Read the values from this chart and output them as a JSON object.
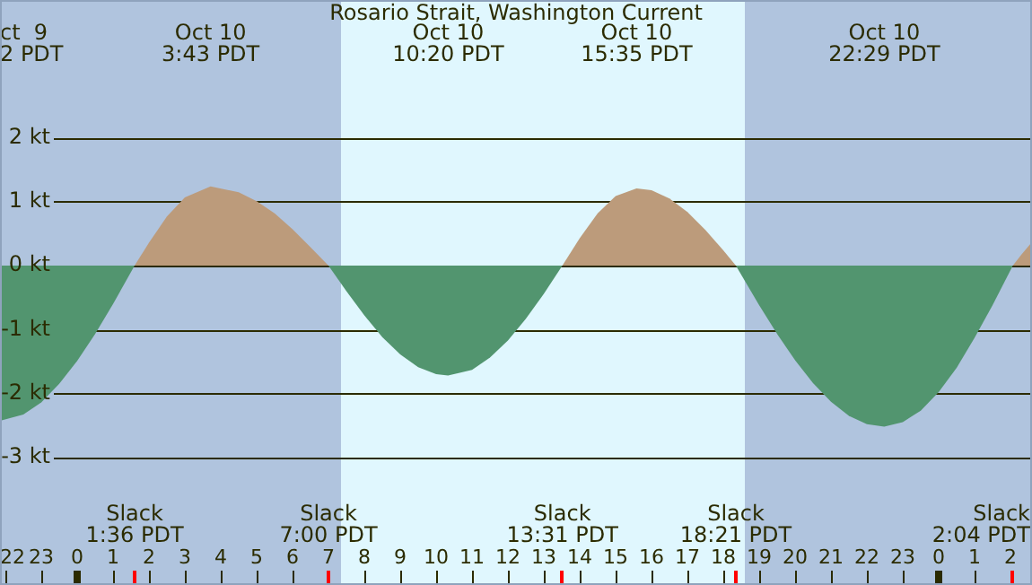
{
  "chart_data": {
    "type": "area",
    "title": "Rosario Strait, Washington Current",
    "x": [
      "--10-09T21:51",
      "--10-09T22:30",
      "--10-09T23:00",
      "--10-09T23:30",
      "--10-10T00:00",
      "--10-10T00:30",
      "--10-10T01:00",
      "--10-10T01:36",
      "--10-10T02:00",
      "--10-10T02:30",
      "--10-10T03:00",
      "--10-10T03:43",
      "--10-10T04:30",
      "--10-10T05:00",
      "--10-10T05:30",
      "--10-10T06:00",
      "--10-10T06:30",
      "--10-10T07:00",
      "--10-10T07:30",
      "--10-10T08:00",
      "--10-10T08:30",
      "--10-10T09:00",
      "--10-10T09:30",
      "--10-10T10:00",
      "--10-10T10:20",
      "--10-10T11:00",
      "--10-10T11:30",
      "--10-10T12:00",
      "--10-10T12:30",
      "--10-10T13:00",
      "--10-10T13:31",
      "--10-10T14:00",
      "--10-10T14:30",
      "--10-10T15:00",
      "--10-10T15:35",
      "--10-10T16:00",
      "--10-10T16:30",
      "--10-10T17:00",
      "--10-10T17:30",
      "--10-10T18:00",
      "--10-10T18:21",
      "--10-10T19:00",
      "--10-10T19:30",
      "--10-10T20:00",
      "--10-10T20:30",
      "--10-10T21:00",
      "--10-10T21:30",
      "--10-10T22:00",
      "--10-10T22:29",
      "--10-10T23:00",
      "--10-10T23:30",
      "--10-11T00:00",
      "--10-11T00:30",
      "--10-11T01:00",
      "--10-11T01:30",
      "--10-11T02:04",
      "--10-11T02:18",
      "--10-11T02:36"
    ],
    "series": [
      {
        "color": "#52956f",
        "values": [
          -2.43,
          -2.33,
          -2.14,
          -1.85,
          -1.49,
          -1.07,
          -0.6,
          0,
          null,
          null,
          null,
          null,
          null,
          null,
          null,
          null,
          null,
          0,
          -0.4,
          -0.78,
          -1.12,
          -1.39,
          -1.59,
          -1.7,
          -1.72,
          -1.63,
          -1.44,
          -1.17,
          -0.83,
          -0.44,
          0,
          null,
          null,
          null,
          null,
          null,
          null,
          null,
          null,
          null,
          0,
          -0.62,
          -1.07,
          -1.48,
          -1.84,
          -2.13,
          -2.35,
          -2.48,
          -2.52,
          -2.45,
          -2.27,
          -1.98,
          -1.6,
          -1.13,
          -0.62,
          0,
          null,
          null
        ]
      },
      {
        "color": "#bc9b7b",
        "values": [
          null,
          null,
          null,
          null,
          null,
          null,
          null,
          0,
          0.36,
          0.77,
          1.07,
          1.24,
          1.15,
          1.01,
          0.82,
          0.57,
          0.29,
          0,
          null,
          null,
          null,
          null,
          null,
          null,
          null,
          null,
          null,
          null,
          null,
          null,
          0,
          0.43,
          0.82,
          1.09,
          1.21,
          1.18,
          1.05,
          0.84,
          0.56,
          0.24,
          0,
          null,
          null,
          null,
          null,
          null,
          null,
          null,
          null,
          null,
          null,
          null,
          null,
          null,
          null,
          0,
          0.17,
          0.37
        ]
      }
    ],
    "xlim": [
      "--10-09T21:51",
      "--10-11T02:36"
    ],
    "xticks": [
      {
        "value": "--10-09T22:00",
        "label": "22"
      },
      {
        "value": "--10-09T23:00",
        "label": "23"
      },
      {
        "value": "--10-10T00:00",
        "label": "0"
      },
      {
        "value": "--10-10T01:00",
        "label": "1"
      },
      {
        "value": "--10-10T02:00",
        "label": "2"
      },
      {
        "value": "--10-10T03:00",
        "label": "3"
      },
      {
        "value": "--10-10T04:00",
        "label": "4"
      },
      {
        "value": "--10-10T05:00",
        "label": "5"
      },
      {
        "value": "--10-10T06:00",
        "label": "6"
      },
      {
        "value": "--10-10T07:00",
        "label": "7"
      },
      {
        "value": "--10-10T08:00",
        "label": "8"
      },
      {
        "value": "--10-10T09:00",
        "label": "9"
      },
      {
        "value": "--10-10T10:00",
        "label": "10"
      },
      {
        "value": "--10-10T11:00",
        "label": "11"
      },
      {
        "value": "--10-10T12:00",
        "label": "12"
      },
      {
        "value": "--10-10T13:00",
        "label": "13"
      },
      {
        "value": "--10-10T14:00",
        "label": "14"
      },
      {
        "value": "--10-10T15:00",
        "label": "15"
      },
      {
        "value": "--10-10T16:00",
        "label": "16"
      },
      {
        "value": "--10-10T17:00",
        "label": "17"
      },
      {
        "value": "--10-10T18:00",
        "label": "18"
      },
      {
        "value": "--10-10T19:00",
        "label": "19"
      },
      {
        "value": "--10-10T20:00",
        "label": "20"
      },
      {
        "value": "--10-10T21:00",
        "label": "21"
      },
      {
        "value": "--10-10T22:00",
        "label": "22"
      },
      {
        "value": "--10-10T23:00",
        "label": "23"
      },
      {
        "value": "--10-11T00:00",
        "label": "0"
      },
      {
        "value": "--10-11T01:00",
        "label": "1"
      },
      {
        "value": "--10-11T02:00",
        "label": "2"
      }
    ],
    "ylim": [
      -5,
      4.16
    ],
    "yticks": [
      {
        "value": -3,
        "label": "-3 kt"
      },
      {
        "value": -2,
        "label": "-2 kt"
      },
      {
        "value": -1,
        "label": "-1 kt"
      },
      {
        "value": 0,
        "label": "0 kt"
      },
      {
        "value": 1,
        "label": "1 kt"
      },
      {
        "value": 2,
        "label": "2 kt"
      }
    ],
    "grid": "y",
    "marker": "none",
    "bands": [
      {
        "axis": "x",
        "from": "--10-09T21:51",
        "to": "--10-10T07:21",
        "color": "#b0c4de"
      },
      {
        "axis": "x",
        "from": "--10-10T07:21",
        "to": "--10-10T18:36",
        "color": "#e0f7fe"
      },
      {
        "axis": "x",
        "from": "--10-10T18:36",
        "to": "--10-11T02:36",
        "color": "#b0c4de"
      }
    ],
    "annotations": [
      "ct  9\n2 PDT",
      "Oct 10\n3:43 PDT",
      "Oct 10\n10:20 PDT",
      "Oct 10\n15:35 PDT",
      "Oct 10\n22:29 PDT",
      "Slack\n1:36 PDT",
      "Slack\n7:00 PDT",
      "Slack\n13:31 PDT",
      "Slack\n18:21 PDT",
      "Slack\n2:04 PDT"
    ]
  }
}
